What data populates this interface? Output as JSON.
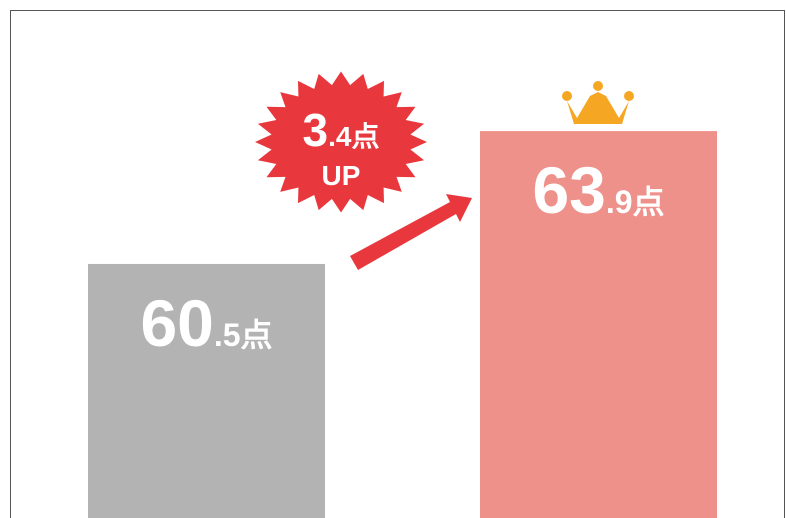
{
  "chart_data": {
    "type": "bar",
    "categories": [
      null,
      null
    ],
    "values": [
      60.5,
      63.9
    ],
    "value_labels": [
      "60.5点",
      "63.9点"
    ],
    "colors": [
      "#b3b3b3",
      "#ef918b"
    ],
    "ylim": [
      54,
      66
    ],
    "annotation": [
      "3.4点",
      "UP"
    ]
  }
}
